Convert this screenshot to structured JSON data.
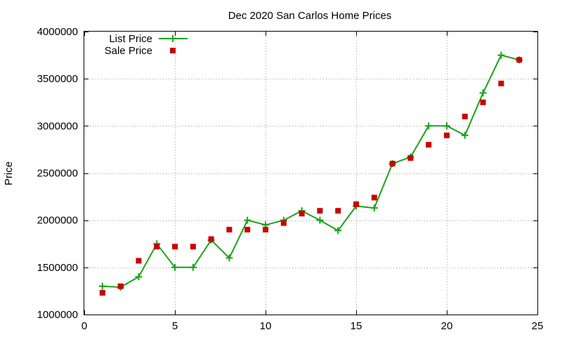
{
  "chart_data": {
    "type": "line",
    "title": "Dec 2020 San Carlos Home Prices",
    "xlabel": "",
    "ylabel": "Price",
    "xlim": [
      0,
      25
    ],
    "ylim": [
      1000000,
      4000000
    ],
    "xticks": [
      0,
      5,
      10,
      15,
      20,
      25
    ],
    "yticks": [
      1000000,
      1500000,
      2000000,
      2500000,
      3000000,
      3500000,
      4000000
    ],
    "grid": true,
    "legend_position": "top-left",
    "series": [
      {
        "name": "List Price",
        "style": "line-with-plus-markers",
        "color": "#1aa31a",
        "x": [
          1,
          2,
          3,
          4,
          5,
          6,
          7,
          8,
          9,
          10,
          11,
          12,
          13,
          14,
          15,
          16,
          17,
          18,
          19,
          20,
          21,
          22,
          23,
          24
        ],
        "y": [
          1300000,
          1290000,
          1400000,
          1750000,
          1500000,
          1500000,
          1790000,
          1600000,
          2000000,
          1950000,
          2000000,
          2100000,
          2000000,
          1890000,
          2150000,
          2130000,
          2600000,
          2670000,
          3000000,
          3000000,
          2900000,
          3350000,
          3750000,
          3700000
        ]
      },
      {
        "name": "Sale Price",
        "style": "square-markers",
        "color": "#cc0000",
        "x": [
          1,
          2,
          3,
          4,
          5,
          6,
          7,
          8,
          9,
          10,
          11,
          12,
          13,
          14,
          15,
          16,
          17,
          18,
          19,
          20,
          21,
          22,
          23,
          24
        ],
        "y": [
          1230000,
          1300000,
          1570000,
          1720000,
          1720000,
          1720000,
          1800000,
          1900000,
          1900000,
          1900000,
          1970000,
          2070000,
          2100000,
          2100000,
          2170000,
          2240000,
          2600000,
          2660000,
          2800000,
          2900000,
          3100000,
          3250000,
          3450000,
          3700000
        ]
      }
    ]
  }
}
